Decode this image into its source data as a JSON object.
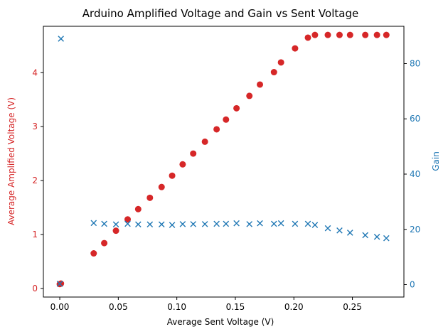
{
  "chart_data": {
    "type": "scatter",
    "title": "Arduino Amplified Voltage and Gain vs Sent Voltage",
    "xlabel": "Average Sent Voltage (V)",
    "ylabel_left": "Average Amplified Voltage (V)",
    "ylabel_right": "Gain",
    "xlim": [
      -0.014,
      0.294
    ],
    "ylim_left": [
      -0.16,
      4.86
    ],
    "ylim_right": [
      -4.5,
      93.5
    ],
    "x_ticks": [
      0.0,
      0.05,
      0.1,
      0.15,
      0.2,
      0.25
    ],
    "x_tick_labels": [
      "0.00",
      "0.05",
      "0.10",
      "0.15",
      "0.20",
      "0.25"
    ],
    "y_left_ticks": [
      0,
      1,
      2,
      3,
      4
    ],
    "y_left_tick_labels": [
      "0",
      "1",
      "2",
      "3",
      "4"
    ],
    "y_right_ticks": [
      0,
      20,
      40,
      60,
      80
    ],
    "y_right_tick_labels": [
      "0",
      "20",
      "40",
      "60",
      "80"
    ],
    "colors": {
      "voltage": "#d62728",
      "gain": "#1f77b4"
    },
    "series": [
      {
        "axis": "left",
        "marker": "circle",
        "x": [
          0.0,
          0.001,
          0.029,
          0.038,
          0.048,
          0.058,
          0.067,
          0.077,
          0.087,
          0.096,
          0.105,
          0.114,
          0.124,
          0.134,
          0.142,
          0.151,
          0.162,
          0.171,
          0.183,
          0.189,
          0.201,
          0.212,
          0.218,
          0.229,
          0.239,
          0.248,
          0.261,
          0.271,
          0.279
        ],
        "y": [
          0.08,
          0.09,
          0.65,
          0.84,
          1.07,
          1.28,
          1.47,
          1.68,
          1.88,
          2.09,
          2.3,
          2.5,
          2.72,
          2.95,
          3.13,
          3.34,
          3.57,
          3.78,
          4.01,
          4.19,
          4.45,
          4.65,
          4.7,
          4.7,
          4.7,
          4.7,
          4.7,
          4.7,
          4.7
        ]
      },
      {
        "axis": "right",
        "marker": "x",
        "x": [
          0.0,
          0.001,
          0.029,
          0.038,
          0.048,
          0.058,
          0.067,
          0.077,
          0.087,
          0.096,
          0.105,
          0.114,
          0.124,
          0.134,
          0.142,
          0.151,
          0.162,
          0.171,
          0.183,
          0.189,
          0.201,
          0.212,
          0.218,
          0.229,
          0.239,
          0.248,
          0.261,
          0.271,
          0.279
        ],
        "y": [
          0.3,
          89,
          22.3,
          22.0,
          21.8,
          22.0,
          21.8,
          21.8,
          21.8,
          21.6,
          21.9,
          21.9,
          21.9,
          22.0,
          22.0,
          22.2,
          21.9,
          22.2,
          22.0,
          22.2,
          22.0,
          22.0,
          21.6,
          20.4,
          19.6,
          18.8,
          17.9,
          17.3,
          16.8
        ]
      }
    ]
  }
}
